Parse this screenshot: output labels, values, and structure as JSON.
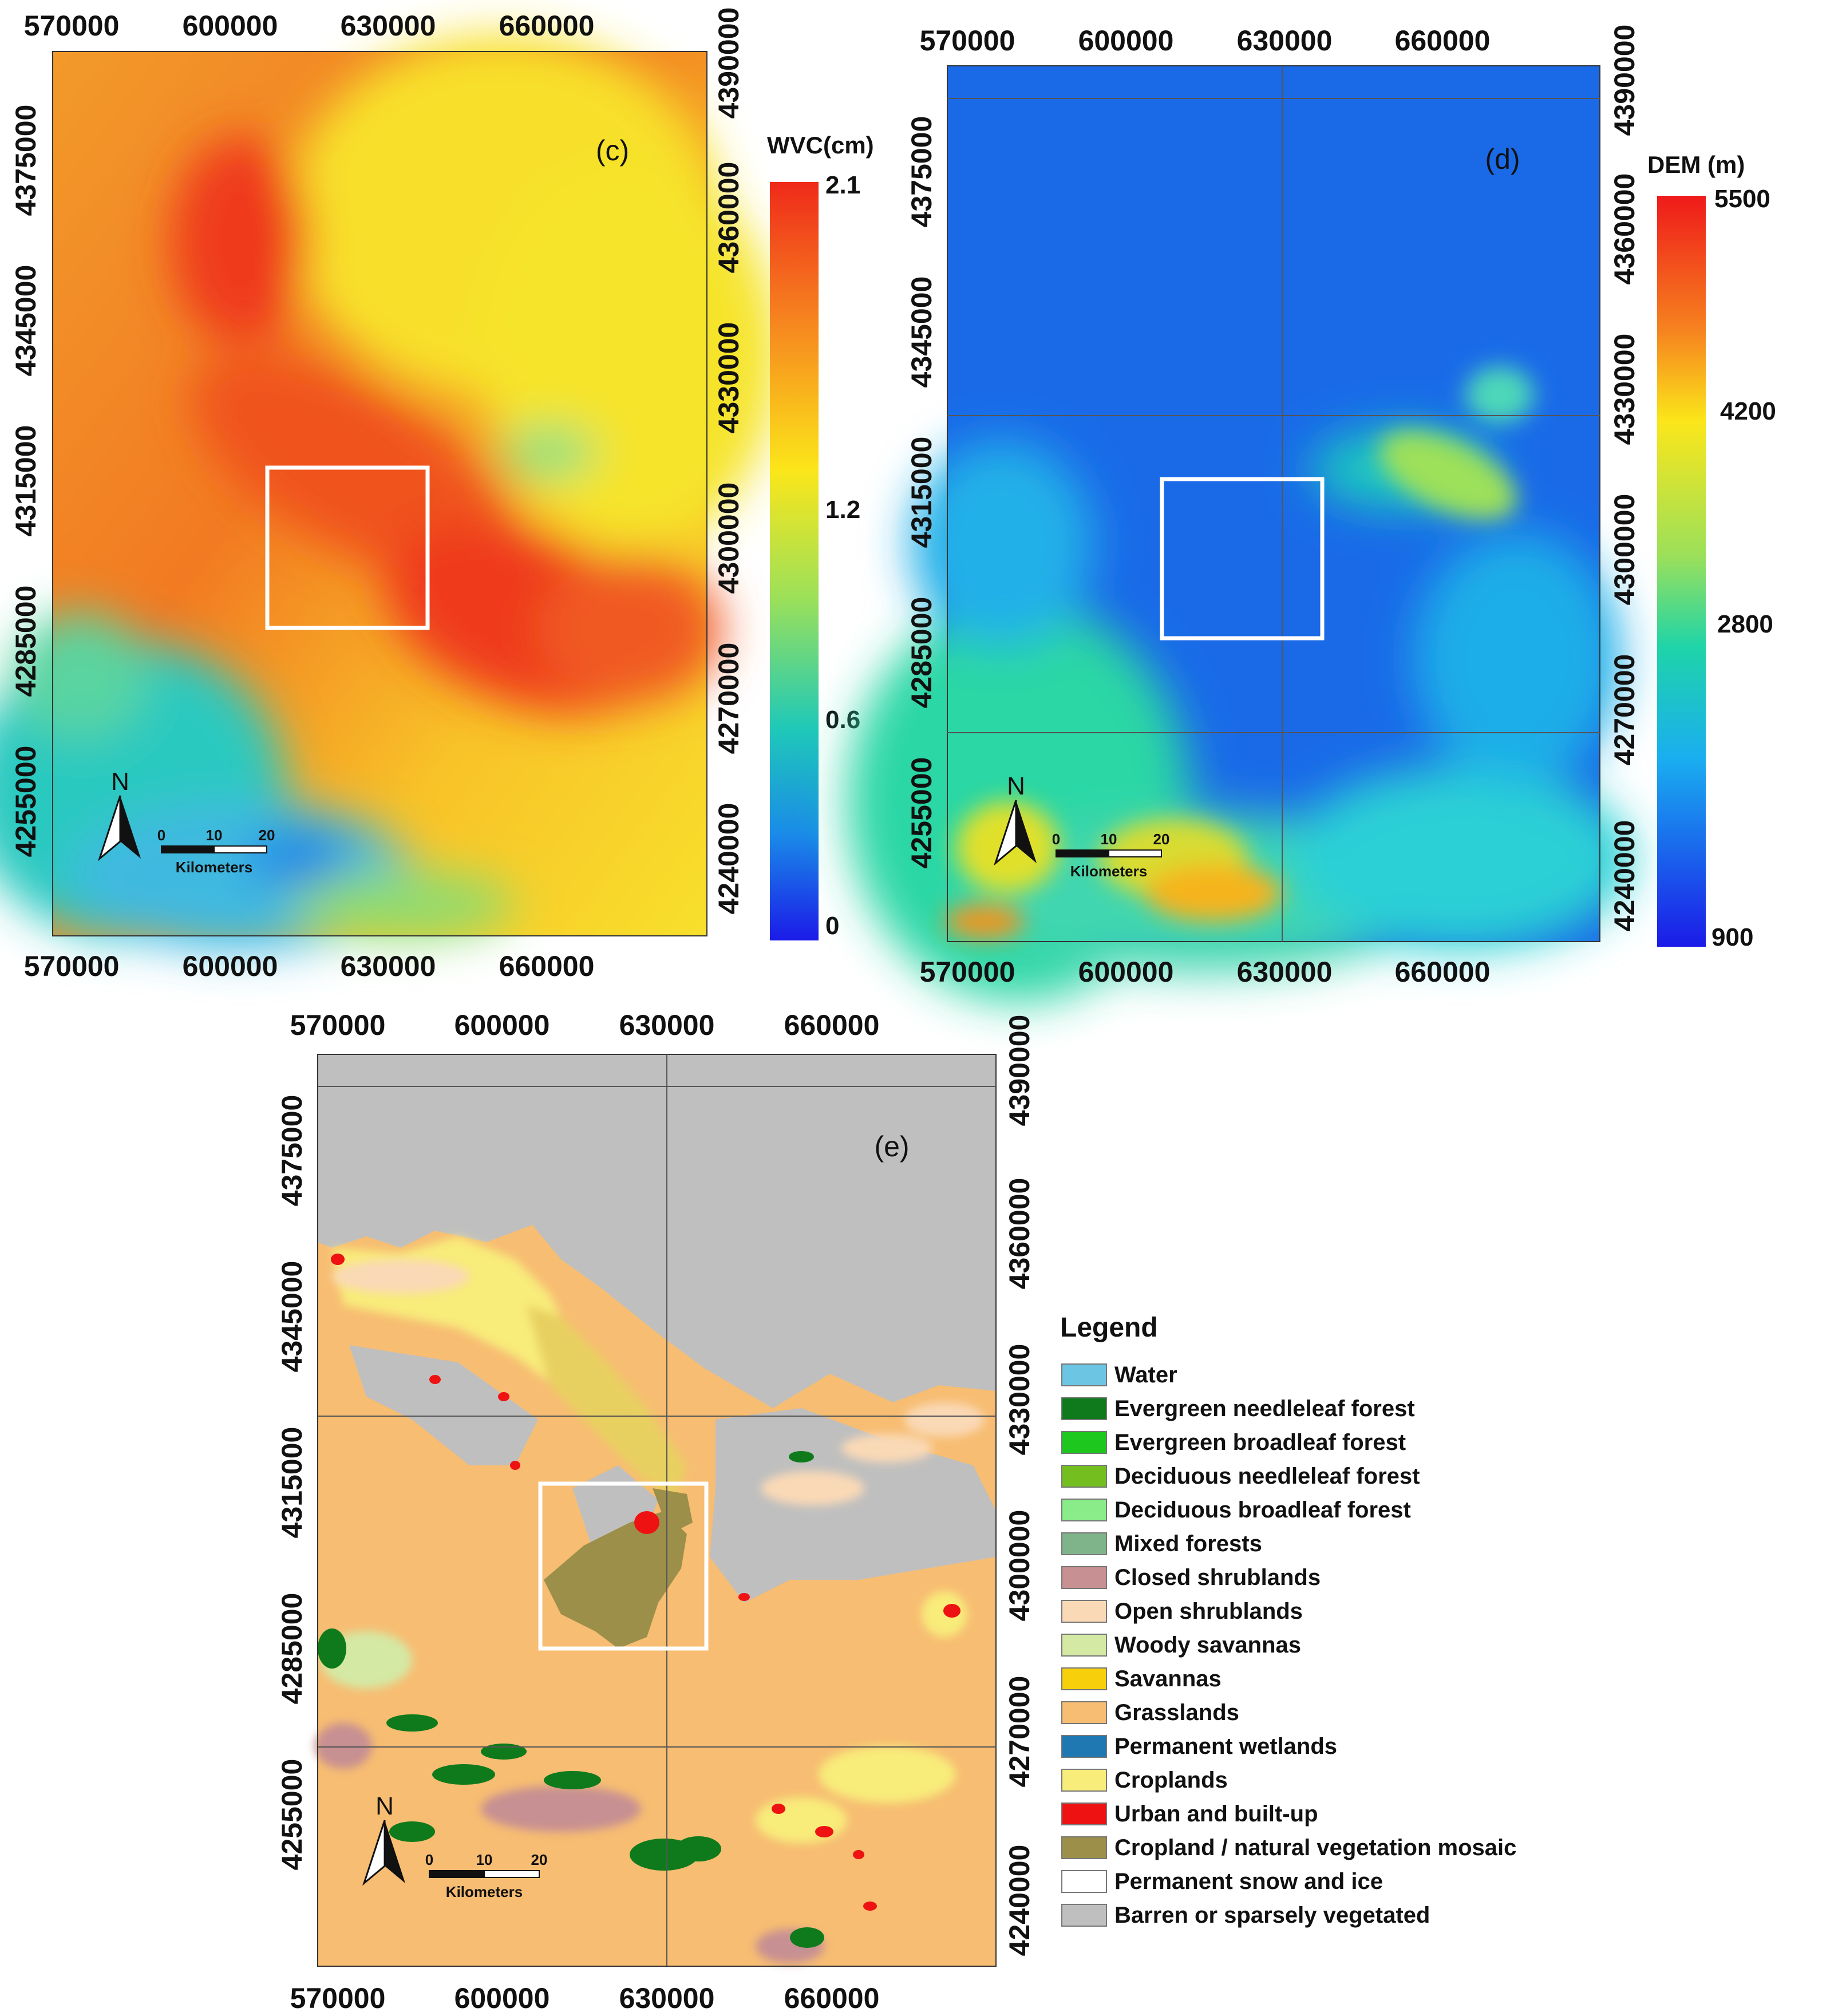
{
  "panels": [
    {
      "id": "c",
      "label": "(c)",
      "x_ticks": [
        "570000",
        "600000",
        "630000",
        "660000"
      ],
      "y_ticks": [
        "4240000",
        "4255000",
        "4270000",
        "4285000",
        "4300000",
        "4315000",
        "4330000",
        "4345000",
        "4360000",
        "4375000",
        "4390000"
      ],
      "colorbar": {
        "title": "WVC(cm)",
        "ticks": [
          "2.1",
          "1.2",
          "0.6",
          "0"
        ]
      }
    },
    {
      "id": "d",
      "label": "(d)",
      "x_ticks": [
        "570000",
        "600000",
        "630000",
        "660000"
      ],
      "y_ticks": [
        "4240000",
        "4255000",
        "4270000",
        "4285000",
        "4300000",
        "4315000",
        "4330000",
        "4345000",
        "4360000",
        "4375000",
        "4390000"
      ],
      "colorbar": {
        "title": "DEM (m)",
        "ticks": [
          "5500",
          "4200",
          "2800",
          "900"
        ]
      }
    },
    {
      "id": "e",
      "label": "(e)",
      "x_ticks": [
        "570000",
        "600000",
        "630000",
        "660000"
      ],
      "y_ticks": [
        "4240000",
        "4255000",
        "4270000",
        "4285000",
        "4300000",
        "4315000",
        "4330000",
        "4345000",
        "4360000",
        "4375000",
        "4390000"
      ]
    }
  ],
  "scalebar": {
    "ticks": [
      "0",
      "10",
      "20"
    ],
    "unit": "Kilometers"
  },
  "north_label": "N",
  "legend": {
    "title": "Legend",
    "items": [
      {
        "label": "Water",
        "color": "#6cc5e3"
      },
      {
        "label": "Evergreen needleleaf forest",
        "color": "#0e7a1c"
      },
      {
        "label": "Evergreen broadleaf forest",
        "color": "#1ec71e"
      },
      {
        "label": "Deciduous needleleaf forest",
        "color": "#74bf1f"
      },
      {
        "label": "Deciduous broadleaf forest",
        "color": "#89ec89"
      },
      {
        "label": "Mixed forests",
        "color": "#7fb48a"
      },
      {
        "label": "Closed shrublands",
        "color": "#c79092"
      },
      {
        "label": "Open shrublands",
        "color": "#fad9b6"
      },
      {
        "label": "Woody savannas",
        "color": "#d4e9a4"
      },
      {
        "label": "Savannas",
        "color": "#f7cf0a"
      },
      {
        "label": "Grasslands",
        "color": "#f7bd72"
      },
      {
        "label": "Permanent wetlands",
        "color": "#1f78b2"
      },
      {
        "label": "Croplands",
        "color": "#f8ec7a"
      },
      {
        "label": "Urban and built-up",
        "color": "#ee1212"
      },
      {
        "label": "Cropland / natural vegetation mosaic",
        "color": "#9c8f4a"
      },
      {
        "label": "Permanent snow and ice",
        "color": "#ffffff"
      },
      {
        "label": "Barren or sparsely vegetated",
        "color": "#bfbfbf"
      }
    ]
  }
}
